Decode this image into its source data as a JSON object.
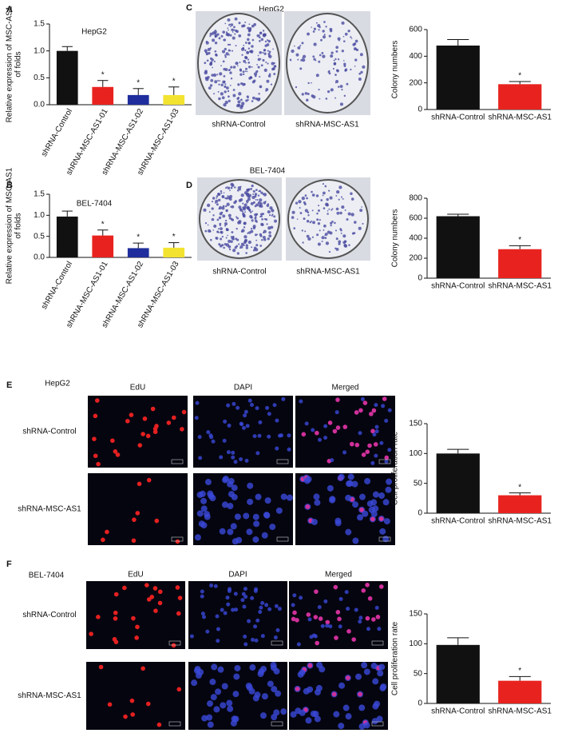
{
  "chart_data": [
    {
      "type": "bar",
      "panel": "A",
      "title": "HepG2",
      "y_label": [
        "Relative expression of MSC-AS1",
        "of folds"
      ],
      "categories": [
        "shRNA-Control",
        "shRNA-MSC-AS1-01",
        "shRNA-MSC-AS1-02",
        "shRNA-MSC-AS1-03"
      ],
      "values": [
        1.0,
        0.33,
        0.18,
        0.18
      ],
      "errors": [
        0.08,
        0.12,
        0.12,
        0.15
      ],
      "colors": [
        "#111111",
        "#e8231f",
        "#1f2e9c",
        "#f2e331"
      ],
      "markers": [
        null,
        "*",
        "*",
        "*"
      ],
      "ylim": [
        0,
        1.5
      ],
      "yticks": [
        {
          "value": 0,
          "label": "0.0"
        },
        0.5,
        {
          "value": 1,
          "label": "1.0"
        },
        1.5
      ]
    },
    {
      "type": "bar",
      "panel": "B",
      "title": "BEL-7404",
      "y_label": [
        "Relative expression of MSC-AS1",
        "of folds"
      ],
      "categories": [
        "shRNA-Control",
        "shRNA-MSC-AS1-01",
        "shRNA-MSC-AS1-02",
        "shRNA-MSC-AS1-03"
      ],
      "values": [
        0.97,
        0.52,
        0.22,
        0.23
      ],
      "errors": [
        0.13,
        0.13,
        0.12,
        0.12
      ],
      "colors": [
        "#111111",
        "#e8231f",
        "#1f2e9c",
        "#f2e331"
      ],
      "markers": [
        null,
        "*",
        "*",
        "*"
      ],
      "ylim": [
        0,
        1.5
      ],
      "yticks": [
        {
          "value": 0,
          "label": "0.0"
        },
        0.5,
        {
          "value": 1,
          "label": "1.0"
        },
        1.5
      ]
    },
    {
      "type": "bar",
      "panel": "C",
      "title": "HepG2",
      "y_label": [
        "Colony numbers"
      ],
      "images": {
        "columns": [
          "shRNA-Control",
          "shRNA-MSC-AS1"
        ]
      },
      "categories": [
        "shRNA-Control",
        "shRNA-MSC-AS1"
      ],
      "values": [
        480,
        190
      ],
      "errors": [
        45,
        20
      ],
      "colors": [
        "#111111",
        "#e8231f"
      ],
      "markers": [
        null,
        "*"
      ],
      "ylim": [
        0,
        600
      ],
      "yticks": [
        0,
        200,
        400,
        600
      ]
    },
    {
      "type": "bar",
      "panel": "D",
      "title": "BEL-7404",
      "y_label": [
        "Colony numbers"
      ],
      "images": {
        "columns": [
          "shRNA-Control",
          "shRNA-MSC-AS1"
        ]
      },
      "categories": [
        "shRNA-Control",
        "shRNA-MSC-AS1"
      ],
      "values": [
        620,
        290
      ],
      "errors": [
        20,
        35
      ],
      "colors": [
        "#111111",
        "#e8231f"
      ],
      "markers": [
        null,
        "*"
      ],
      "ylim": [
        0,
        800
      ],
      "yticks": [
        0,
        200,
        400,
        600,
        800
      ]
    },
    {
      "type": "bar",
      "panel": "E",
      "title": "HepG2",
      "y_label": [
        "Cell proliferation rate"
      ],
      "images": {
        "columns": [
          "EdU",
          "DAPI",
          "Merged"
        ],
        "rows": [
          "shRNA-Control",
          "shRNA-MSC-AS1"
        ]
      },
      "categories": [
        "shRNA-Control",
        "shRNA-MSC-AS1"
      ],
      "values": [
        100,
        30
      ],
      "errors": [
        7,
        4
      ],
      "colors": [
        "#111111",
        "#e8231f"
      ],
      "markers": [
        null,
        "*"
      ],
      "ylim": [
        0,
        150
      ],
      "yticks": [
        0,
        50,
        100,
        150
      ]
    },
    {
      "type": "bar",
      "panel": "F",
      "title": "BEL-7404",
      "y_label": [
        "Cell proliferation rate"
      ],
      "images": {
        "columns": [
          "EdU",
          "DAPI",
          "Merged"
        ],
        "rows": [
          "shRNA-Control",
          "shRNA-MSC-AS1"
        ]
      },
      "categories": [
        "shRNA-Control",
        "shRNA-MSC-AS1"
      ],
      "values": [
        98,
        38
      ],
      "errors": [
        12,
        7
      ],
      "colors": [
        "#111111",
        "#e8231f"
      ],
      "markers": [
        null,
        "*"
      ],
      "ylim": [
        0,
        150
      ],
      "yticks": [
        0,
        50,
        100,
        150
      ]
    }
  ]
}
